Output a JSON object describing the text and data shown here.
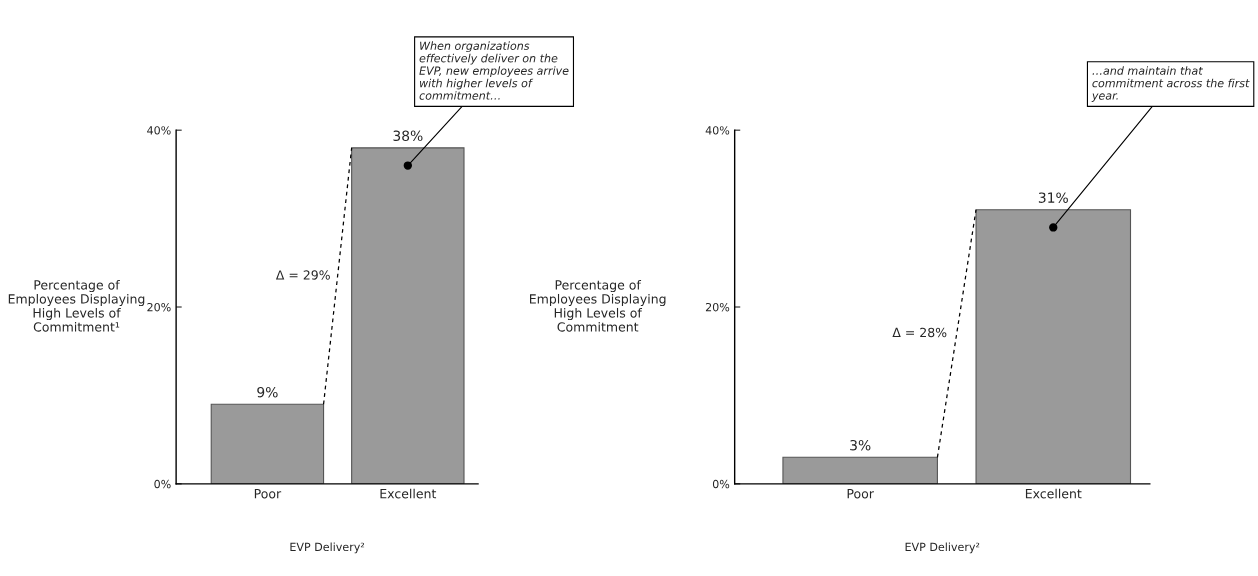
{
  "chart_data": [
    {
      "type": "bar",
      "categories": [
        "Poor",
        "Excellent"
      ],
      "values": [
        9,
        38
      ],
      "color": "#9a9a9a",
      "value_labels": [
        "9%",
        "38%"
      ],
      "ylim": [
        0,
        40
      ],
      "yticks": [
        {
          "value": 0,
          "label": "0%"
        },
        {
          "value": 20,
          "label": "20%"
        },
        {
          "value": 40,
          "label": "40%"
        }
      ],
      "ylabel": "Percentage of Employees Displaying High Levels of Commitment¹",
      "xlabel": "EVP Delivery²",
      "grid": false,
      "legend": false,
      "annotations": [
        "Δ = 29%",
        {
          "text": "When organizations effectively deliver on the EVP, new employees arrive with higher levels of commitment…",
          "x": "Excellent",
          "y": 36
        }
      ]
    },
    {
      "type": "bar",
      "categories": [
        "Poor",
        "Excellent"
      ],
      "values": [
        3,
        31
      ],
      "color": "#9a9a9a",
      "value_labels": [
        "3%",
        "31%"
      ],
      "ylim": [
        0,
        40
      ],
      "yticks": [
        {
          "value": 0,
          "label": "0%"
        },
        {
          "value": 20,
          "label": "20%"
        },
        {
          "value": 40,
          "label": "40%"
        }
      ],
      "ylabel": "Percentage of Employees Displaying High Levels of Commitment",
      "xlabel": "EVP Delivery²",
      "grid": false,
      "legend": false,
      "annotations": [
        "Δ = 28%",
        {
          "text": "…and maintain that commitment across the first year.",
          "x": "Excellent",
          "y": 29
        }
      ]
    }
  ]
}
